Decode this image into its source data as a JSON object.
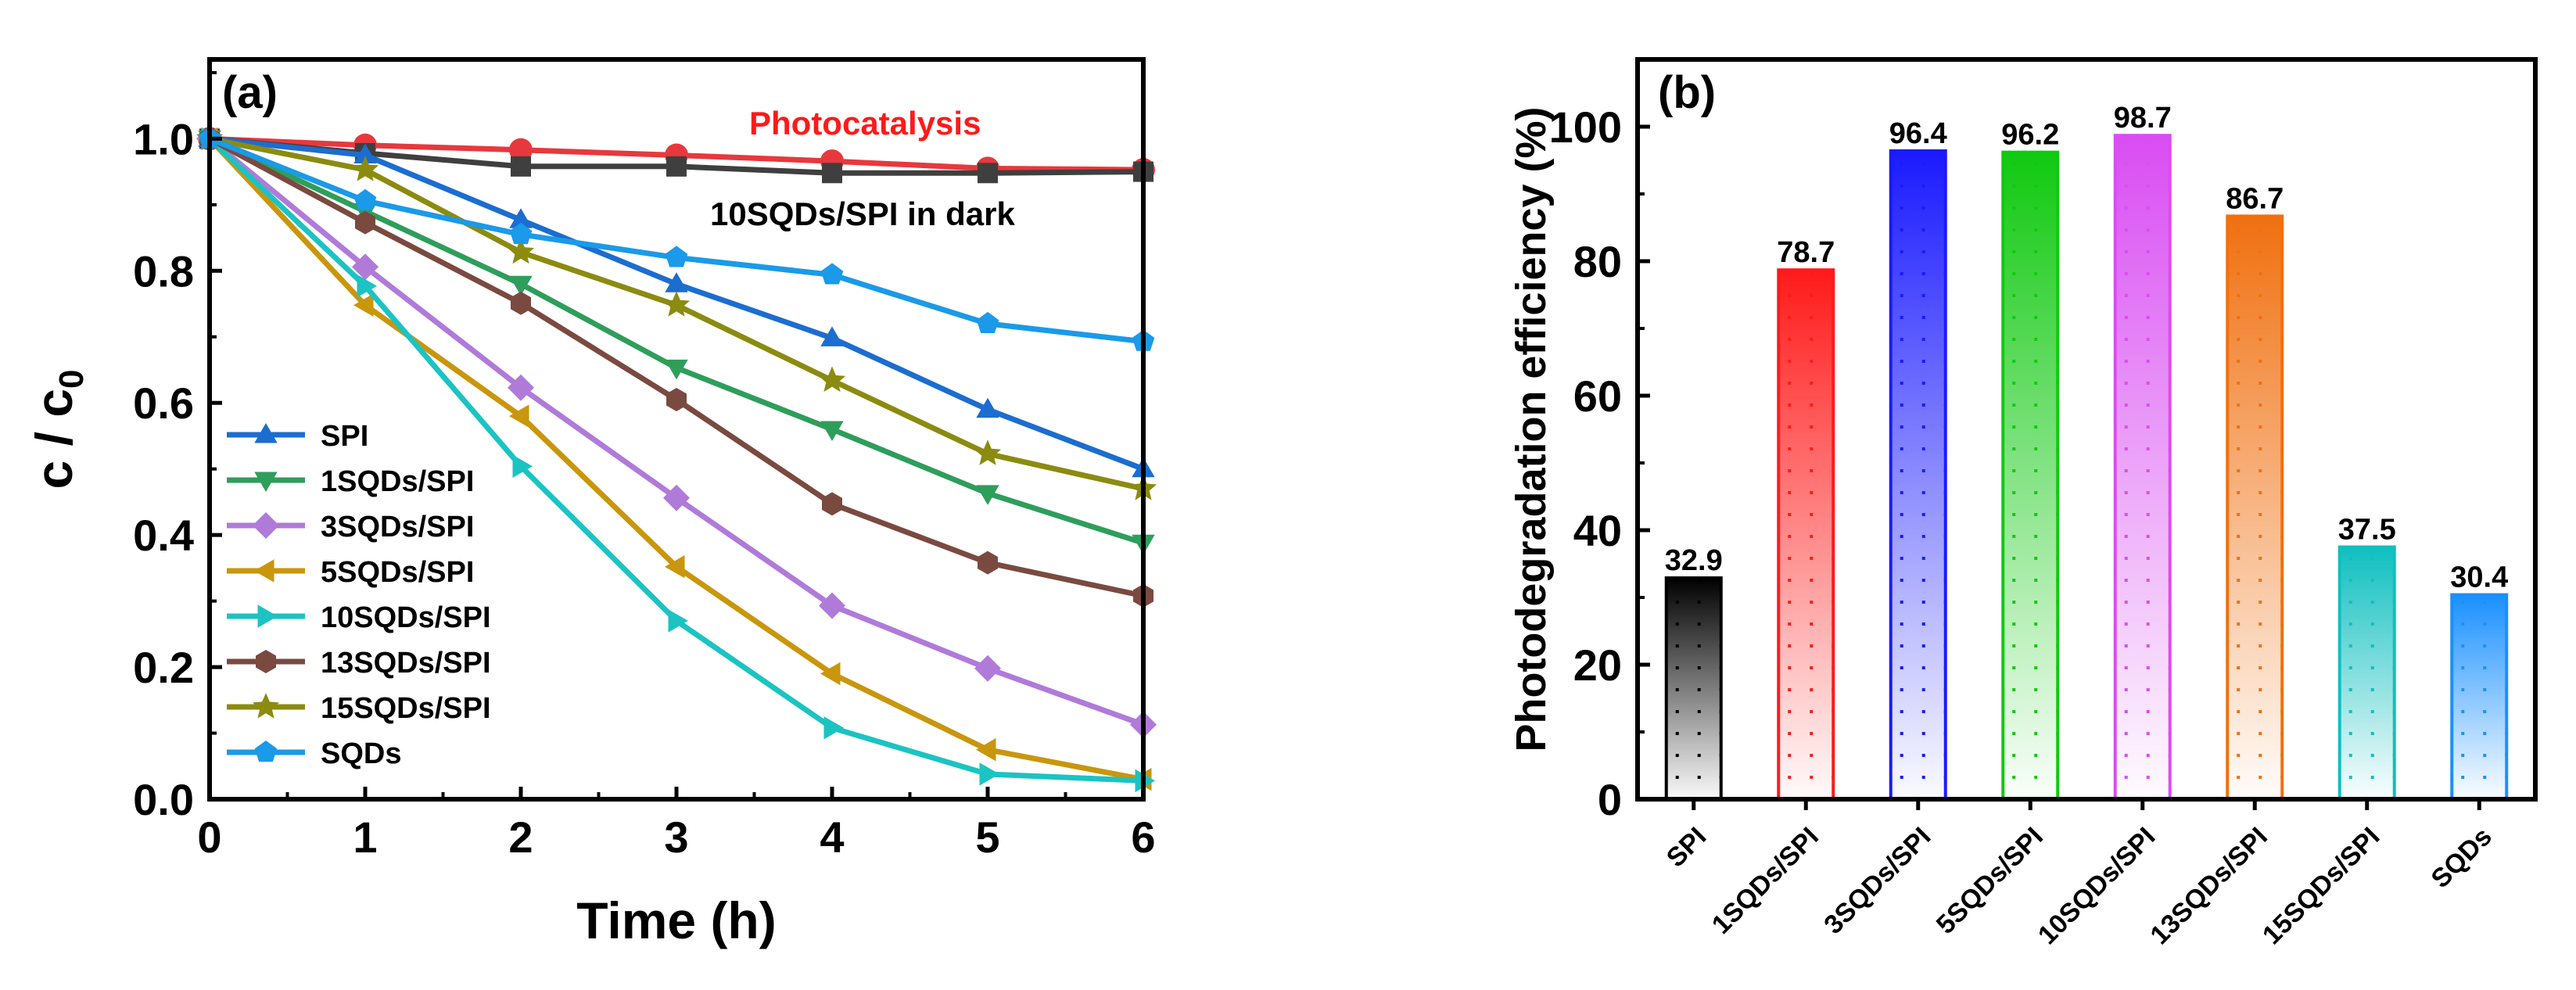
{
  "chart_data": [
    {
      "type": "line",
      "panel_label": "(a)",
      "xlabel": "Time (h)",
      "ylabel_main": "c / c",
      "ylabel_sub": "0",
      "xlim": [
        0,
        6
      ],
      "ylim": [
        0,
        1.12
      ],
      "x_ticks": [
        "0",
        "1",
        "2",
        "3",
        "4",
        "5",
        "6"
      ],
      "y_ticks": [
        "0.0",
        "0.2",
        "0.4",
        "0.6",
        "0.8",
        "1.0"
      ],
      "x": [
        0,
        1,
        2,
        3,
        4,
        5,
        6
      ],
      "annotations": [
        {
          "text": "Photocatalysis",
          "color": "#ff1a1a"
        },
        {
          "text": "10SQDs/SPI in dark",
          "color": "#000000"
        }
      ],
      "series": [
        {
          "name": "10SQDs/SPI photocatalysis",
          "color": "#e8383d",
          "marker": "circle",
          "values": [
            1.0,
            0.99,
            0.983,
            0.975,
            0.966,
            0.955,
            0.953
          ],
          "in_legend": false
        },
        {
          "name": "10SQDs/SPI in dark",
          "color": "#3f3f3f",
          "marker": "square",
          "values": [
            1.0,
            0.978,
            0.958,
            0.958,
            0.948,
            0.948,
            0.95
          ],
          "in_legend": false
        },
        {
          "name": "SPI",
          "color": "#1c6dd0",
          "marker": "triangle-up",
          "values": [
            1.0,
            0.975,
            0.877,
            0.78,
            0.698,
            0.59,
            0.5
          ],
          "in_legend": true
        },
        {
          "name": "1SQDs/SPI",
          "color": "#2e9e5b",
          "marker": "triangle-down",
          "values": [
            1.0,
            0.89,
            0.78,
            0.653,
            0.56,
            0.463,
            0.388
          ],
          "in_legend": true
        },
        {
          "name": "3SQDs/SPI",
          "color": "#b07ad9",
          "marker": "diamond",
          "values": [
            1.0,
            0.806,
            0.623,
            0.456,
            0.293,
            0.198,
            0.113
          ],
          "in_legend": true
        },
        {
          "name": "5SQDs/SPI",
          "color": "#c9960c",
          "marker": "triangle-left",
          "values": [
            1.0,
            0.748,
            0.58,
            0.352,
            0.19,
            0.075,
            0.03
          ],
          "in_legend": true
        },
        {
          "name": "10SQDs/SPI",
          "color": "#1cc3c3",
          "marker": "triangle-right",
          "values": [
            1.0,
            0.777,
            0.504,
            0.27,
            0.108,
            0.038,
            0.028
          ],
          "in_legend": true
        },
        {
          "name": "13SQDs/SPI",
          "color": "#7a4a40",
          "marker": "hexagon",
          "values": [
            1.0,
            0.873,
            0.751,
            0.605,
            0.447,
            0.358,
            0.308
          ],
          "in_legend": true
        },
        {
          "name": "15SQDs/SPI",
          "color": "#8b8b10",
          "marker": "star",
          "values": [
            1.0,
            0.953,
            0.828,
            0.748,
            0.634,
            0.523,
            0.47
          ],
          "in_legend": true
        },
        {
          "name": "SQDs",
          "color": "#1a9ae8",
          "marker": "pentagon",
          "values": [
            1.0,
            0.906,
            0.855,
            0.82,
            0.794,
            0.72,
            0.693
          ],
          "in_legend": true
        }
      ]
    },
    {
      "type": "bar",
      "panel_label": "(b)",
      "ylabel": "Photodegradation efficiency (%)",
      "ylim": [
        0,
        110
      ],
      "y_ticks": [
        "0",
        "20",
        "40",
        "60",
        "80",
        "100"
      ],
      "categories": [
        "SPI",
        "1SQDs/SPI",
        "3SQDs/SPI",
        "5SQDs/SPI",
        "10SQDs/SPI",
        "13SQDs/SPI",
        "15SQDs/SPI",
        "SQDs"
      ],
      "values": [
        32.9,
        78.7,
        96.4,
        96.2,
        98.7,
        86.7,
        37.5,
        30.4
      ],
      "value_labels": [
        "32.9",
        "78.7",
        "96.4",
        "96.2",
        "98.7",
        "86.7",
        "37.5",
        "30.4"
      ],
      "colors": [
        "#000000",
        "#ff1a1a",
        "#1a1aff",
        "#11c911",
        "#d94df2",
        "#f07010",
        "#10bfbf",
        "#1a90ff"
      ]
    }
  ]
}
